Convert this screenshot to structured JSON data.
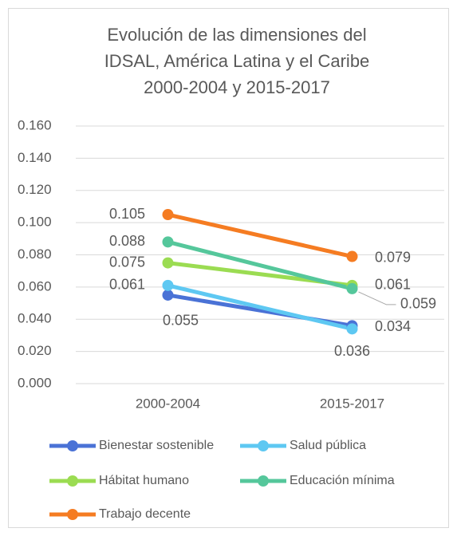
{
  "chart_data": {
    "type": "line",
    "title": [
      "Evolución de las dimensiones del",
      "IDSAL, América Latina y el Caribe",
      "2000-2004 y 2015-2017"
    ],
    "categories": [
      "2000-2004",
      "2015-2017"
    ],
    "series": [
      {
        "name": "Bienestar sostenible",
        "color": "#4a72d6",
        "values": [
          0.055,
          0.036
        ]
      },
      {
        "name": "Salud pública",
        "color": "#5ec8f2",
        "values": [
          0.061,
          0.034
        ]
      },
      {
        "name": "Hábitat humano",
        "color": "#9bdc52",
        "values": [
          0.075,
          0.061
        ]
      },
      {
        "name": "Educación mínima",
        "color": "#55c79b",
        "values": [
          0.088,
          0.059
        ]
      },
      {
        "name": "Trabajo decente",
        "color": "#f57c22",
        "values": [
          0.105,
          0.079
        ]
      }
    ],
    "ylim": [
      0,
      0.16
    ],
    "yticks": [
      {
        "value": 0,
        "label": "0.000"
      },
      {
        "value": 0.02,
        "label": "0.020"
      },
      {
        "value": 0.04,
        "label": "0.040"
      },
      {
        "value": 0.06,
        "label": "0.060"
      },
      {
        "value": 0.08,
        "label": "0.080"
      },
      {
        "value": 0.1,
        "label": "0.100"
      },
      {
        "value": 0.12,
        "label": "0.120"
      },
      {
        "value": 0.14,
        "label": "0.140"
      },
      {
        "value": 0.16,
        "label": "0.160"
      }
    ],
    "grid": true
  }
}
